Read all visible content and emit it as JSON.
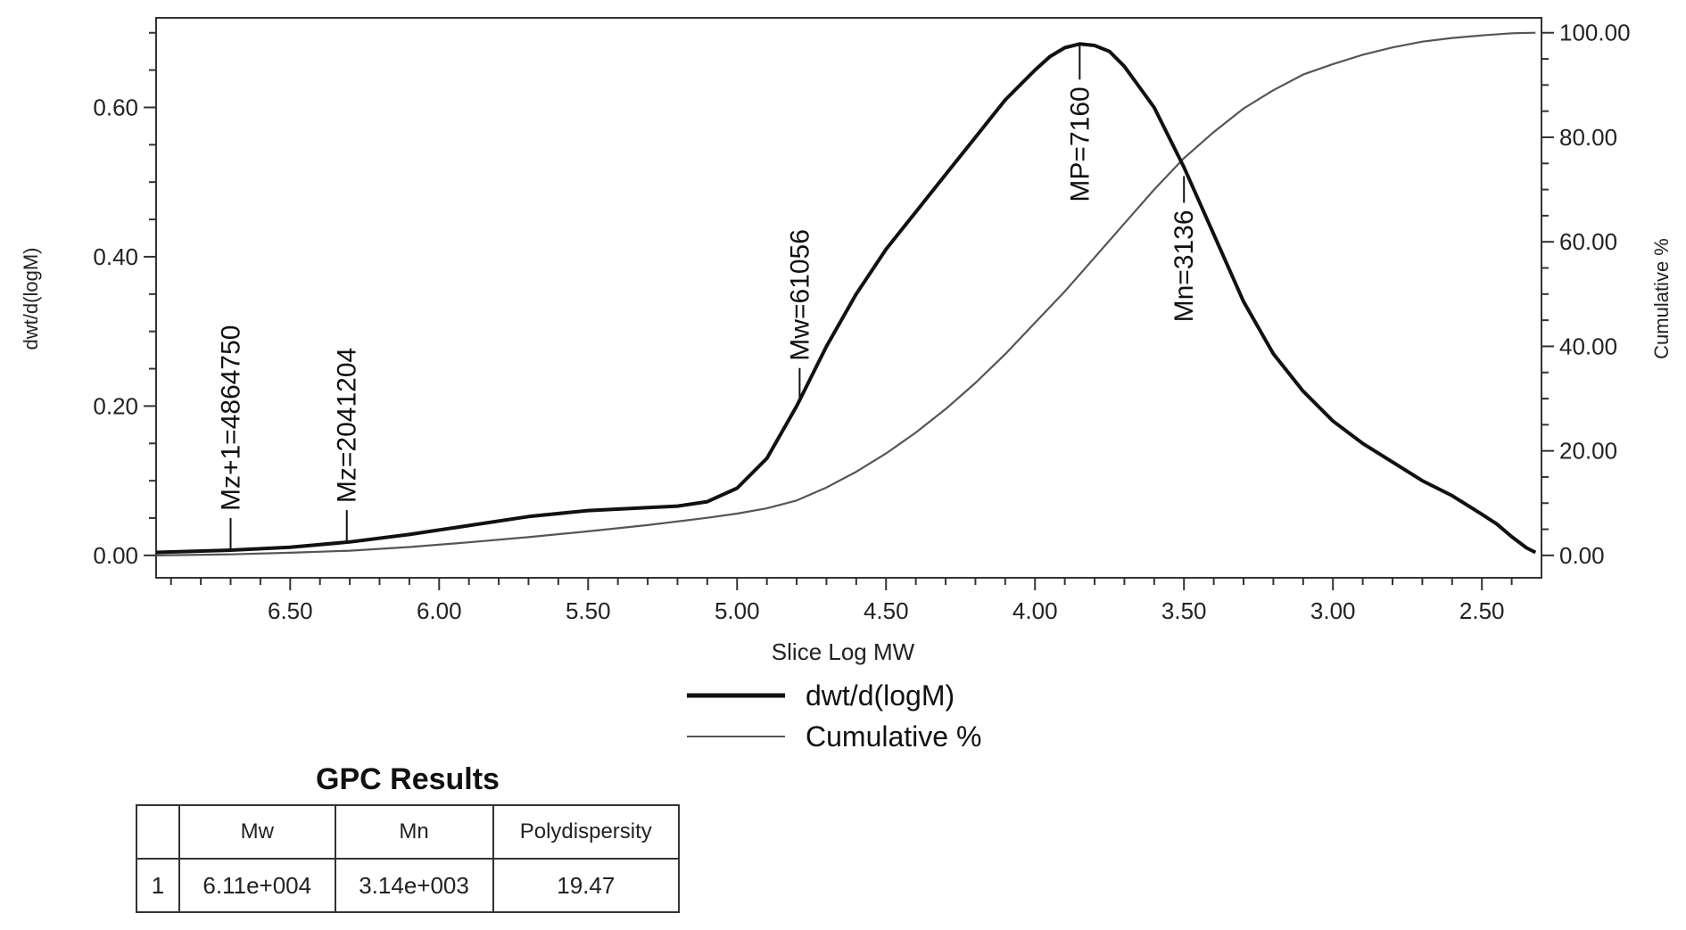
{
  "chart_data": {
    "type": "line",
    "xlabel": "Slice Log MW",
    "ylabel": "dwt/d(logM)",
    "y2label": "Cumulative %",
    "xlim": [
      6.95,
      2.3
    ],
    "ylim": [
      -0.03,
      0.72
    ],
    "y2lim": [
      -4.286,
      102.857
    ],
    "x_ticks": [
      "6.50",
      "6.00",
      "5.50",
      "5.00",
      "4.50",
      "4.00",
      "3.50",
      "3.00",
      "2.50"
    ],
    "y_ticks": [
      "0.00",
      "0.20",
      "0.40",
      "0.60"
    ],
    "y2_ticks": [
      "0.00",
      "20.00",
      "40.00",
      "60.00",
      "80.00",
      "100.00"
    ],
    "legend": [
      "dwt/d(logM)",
      "Cumulative %"
    ],
    "legend_position": "bottom-center",
    "series": [
      {
        "name": "dwt/d(logM)",
        "axis": "left",
        "color": "#111111",
        "x": [
          6.95,
          6.7,
          6.5,
          6.3,
          6.1,
          5.9,
          5.7,
          5.5,
          5.3,
          5.2,
          5.1,
          5.0,
          4.9,
          4.8,
          4.7,
          4.6,
          4.5,
          4.4,
          4.3,
          4.2,
          4.1,
          4.0,
          3.95,
          3.9,
          3.85,
          3.8,
          3.75,
          3.7,
          3.6,
          3.5,
          3.4,
          3.3,
          3.2,
          3.1,
          3.0,
          2.9,
          2.8,
          2.7,
          2.6,
          2.5,
          2.45,
          2.4,
          2.35,
          2.32
        ],
        "y": [
          0.004,
          0.007,
          0.011,
          0.018,
          0.028,
          0.04,
          0.052,
          0.06,
          0.064,
          0.066,
          0.072,
          0.09,
          0.13,
          0.2,
          0.28,
          0.35,
          0.41,
          0.46,
          0.51,
          0.56,
          0.61,
          0.65,
          0.668,
          0.68,
          0.685,
          0.683,
          0.675,
          0.655,
          0.6,
          0.52,
          0.43,
          0.34,
          0.27,
          0.22,
          0.18,
          0.15,
          0.125,
          0.1,
          0.08,
          0.055,
          0.042,
          0.025,
          0.01,
          0.004
        ]
      },
      {
        "name": "Cumulative %",
        "axis": "right",
        "color": "#555555",
        "x": [
          6.95,
          6.7,
          6.5,
          6.3,
          6.1,
          5.9,
          5.7,
          5.5,
          5.3,
          5.1,
          5.0,
          4.9,
          4.8,
          4.7,
          4.6,
          4.5,
          4.4,
          4.3,
          4.2,
          4.1,
          4.0,
          3.9,
          3.8,
          3.7,
          3.6,
          3.5,
          3.4,
          3.3,
          3.2,
          3.1,
          3.0,
          2.9,
          2.8,
          2.7,
          2.6,
          2.5,
          2.4,
          2.32
        ],
        "y": [
          0.0,
          0.2,
          0.5,
          0.9,
          1.6,
          2.5,
          3.5,
          4.6,
          5.8,
          7.2,
          8.0,
          9.0,
          10.5,
          13.0,
          16.0,
          19.5,
          23.5,
          28.0,
          33.0,
          38.5,
          44.5,
          50.5,
          57.0,
          63.5,
          70.0,
          76.0,
          81.0,
          85.5,
          89.0,
          92.0,
          94.0,
          95.8,
          97.2,
          98.3,
          99.0,
          99.5,
          99.9,
          100.0
        ]
      }
    ],
    "annotations": [
      {
        "label": "Mz+1=4864750",
        "x": 6.7
      },
      {
        "label": "Mz=2041204",
        "x": 6.31
      },
      {
        "label": "Mw=61056",
        "x": 4.79
      },
      {
        "label": "MP=7160",
        "x": 3.85
      },
      {
        "label": "Mn=3136",
        "x": 3.5
      }
    ]
  },
  "results": {
    "title": "GPC Results",
    "columns": [
      "",
      "Mw",
      "Mn",
      "Polydispersity"
    ],
    "rows": [
      [
        "1",
        "6.11e+004",
        "3.14e+003",
        "19.47"
      ]
    ]
  }
}
